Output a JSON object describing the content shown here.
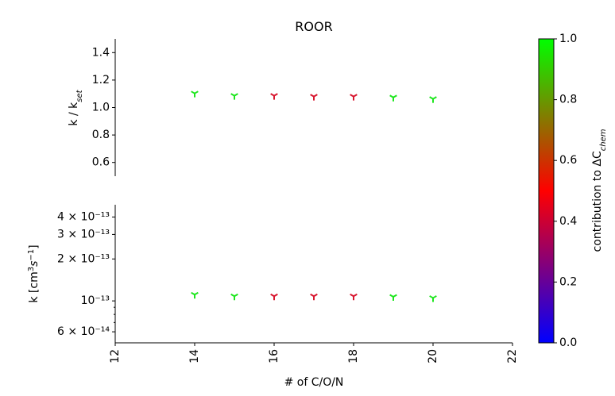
{
  "chart_data": [
    {
      "type": "scatter",
      "title": "ROOR",
      "ylabel": {
        "text": "k / k",
        "sub": "set"
      },
      "x": [
        14,
        15,
        16,
        17,
        18,
        19,
        20
      ],
      "series": [
        {
          "values": [
            1.103,
            1.086,
            1.086,
            1.08,
            1.08,
            1.074,
            1.063
          ],
          "colors": [
            "#1ee61e",
            "#1ee61e",
            "#d81830",
            "#d81830",
            "#d81830",
            "#1ee61e",
            "#1ee61e"
          ]
        }
      ],
      "xlim": [
        12,
        22
      ],
      "ylim": [
        0.5,
        1.5
      ],
      "yticks": [
        0.6,
        0.8,
        {
          "value": 1.0,
          "label": "1.0"
        },
        1.2,
        1.4
      ]
    },
    {
      "type": "scatter",
      "log_y": true,
      "ylabel": {
        "text": "k [cm",
        "sup1": "3",
        "mid": "s",
        "sup2": "−1",
        "end": "]"
      },
      "xlabel": "# of C/O/N",
      "x": [
        14,
        15,
        16,
        17,
        18,
        19,
        20
      ],
      "series": [
        {
          "values": [
            1.11e-13,
            1.08e-13,
            1.08e-13,
            1.08e-13,
            1.08e-13,
            1.07e-13,
            1.05e-13
          ],
          "colors": [
            "#1ee61e",
            "#1ee61e",
            "#d81830",
            "#d81830",
            "#d81830",
            "#1ee61e",
            "#1ee61e"
          ]
        }
      ],
      "xlim": [
        12,
        22
      ],
      "xticks": [
        12,
        14,
        16,
        18,
        20,
        22
      ],
      "ylim": [
        5e-14,
        4.9e-13
      ],
      "yticks": [
        {
          "value": 6e-14,
          "label": "6 × 10⁻¹⁴"
        },
        {
          "value": 1e-13,
          "label": "10⁻¹³"
        },
        {
          "value": 2e-13,
          "label": "2 × 10⁻¹³"
        },
        {
          "value": 3e-13,
          "label": "3 × 10⁻¹³"
        },
        {
          "value": 4e-13,
          "label": "4 × 10⁻¹³"
        }
      ],
      "yminorticks": [
        7e-14,
        8e-14,
        9e-14
      ]
    },
    {
      "type": "colorbar",
      "label": {
        "text": "contribution to ΔC",
        "sub": "chem"
      },
      "colors": [
        "#0000ff",
        "#ff0000",
        "#00ff00"
      ],
      "ylim": [
        0,
        1
      ],
      "yticks": [
        {
          "value": 0,
          "label": "0.0"
        },
        0.2,
        0.4,
        0.6,
        0.8,
        {
          "value": 1,
          "label": "1.0"
        }
      ]
    }
  ]
}
